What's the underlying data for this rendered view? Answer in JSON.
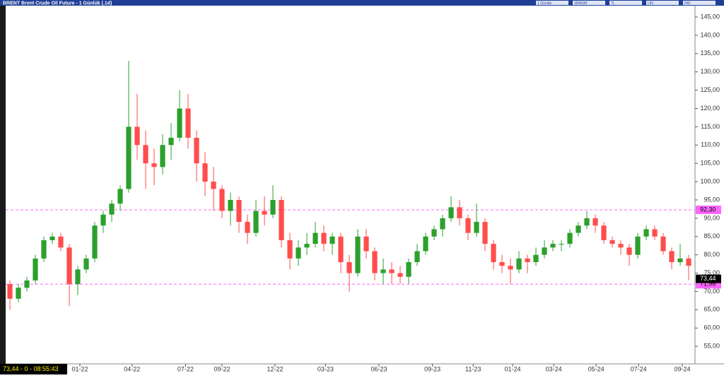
{
  "window_title": "BRENT Brent Crude Oil Future - 1 Günlük (.1d)",
  "toolbar": [
    "1 Günlük",
    "3DMUM",
    "TL",
    "LIN",
    "IND"
  ],
  "status": "73,44 - 0 - 08:55:43",
  "chart_data": {
    "type": "candlestick",
    "up_color": "#2ca02c",
    "down_color": "#ff4d4d",
    "candles": [
      [
        72,
        73,
        65,
        68
      ],
      [
        68,
        72,
        67,
        71
      ],
      [
        71,
        74,
        70,
        73
      ],
      [
        73,
        80,
        72,
        79
      ],
      [
        79,
        85,
        78,
        84
      ],
      [
        84,
        86,
        83,
        85
      ],
      [
        85,
        86,
        81,
        82
      ],
      [
        82,
        83,
        66,
        72
      ],
      [
        72,
        77,
        69,
        76
      ],
      [
        76,
        80,
        75,
        79
      ],
      [
        79,
        89,
        78,
        88
      ],
      [
        88,
        92,
        86,
        91
      ],
      [
        91,
        95,
        89,
        94
      ],
      [
        94,
        99,
        92,
        98
      ],
      [
        98,
        133,
        97,
        115
      ],
      [
        115,
        124,
        106,
        110
      ],
      [
        110,
        114,
        98,
        105
      ],
      [
        105,
        109,
        99,
        104
      ],
      [
        104,
        113,
        102,
        110
      ],
      [
        110,
        116,
        106,
        112
      ],
      [
        112,
        125,
        111,
        120
      ],
      [
        120,
        124,
        109,
        112
      ],
      [
        112,
        114,
        100,
        105
      ],
      [
        105,
        108,
        96,
        100
      ],
      [
        100,
        104,
        92,
        98
      ],
      [
        98,
        99,
        90,
        92
      ],
      [
        92,
        97,
        88,
        95
      ],
      [
        95,
        96,
        86,
        89
      ],
      [
        89,
        91,
        83,
        86
      ],
      [
        86,
        95,
        85,
        92
      ],
      [
        92,
        96,
        88,
        91
      ],
      [
        91,
        99,
        90,
        95
      ],
      [
        95,
        96,
        82,
        84
      ],
      [
        84,
        86,
        76,
        79
      ],
      [
        79,
        84,
        77,
        82
      ],
      [
        82,
        86,
        80,
        83
      ],
      [
        83,
        89,
        82,
        86
      ],
      [
        86,
        88,
        81,
        83
      ],
      [
        83,
        86,
        80,
        85
      ],
      [
        85,
        86,
        75,
        78
      ],
      [
        78,
        80,
        70,
        75
      ],
      [
        75,
        87,
        74,
        85
      ],
      [
        85,
        87,
        79,
        81
      ],
      [
        81,
        82,
        73,
        75
      ],
      [
        75,
        79,
        72,
        76
      ],
      [
        76,
        78,
        72,
        75
      ],
      [
        75,
        77,
        72,
        74
      ],
      [
        74,
        79,
        72,
        78
      ],
      [
        78,
        83,
        77,
        81
      ],
      [
        81,
        86,
        80,
        85
      ],
      [
        85,
        88,
        84,
        87
      ],
      [
        87,
        91,
        85,
        90
      ],
      [
        90,
        96,
        89,
        93
      ],
      [
        93,
        95,
        88,
        90
      ],
      [
        90,
        91,
        84,
        86
      ],
      [
        86,
        94,
        85,
        89
      ],
      [
        89,
        90,
        81,
        83
      ],
      [
        83,
        84,
        76,
        78
      ],
      [
        78,
        80,
        75,
        77
      ],
      [
        77,
        79,
        72,
        76
      ],
      [
        76,
        81,
        75,
        79
      ],
      [
        79,
        80,
        75,
        78
      ],
      [
        78,
        82,
        77,
        80
      ],
      [
        80,
        84,
        79,
        82
      ],
      [
        82,
        84,
        81,
        83
      ],
      [
        83,
        84,
        81,
        83
      ],
      [
        83,
        87,
        82,
        86
      ],
      [
        86,
        89,
        85,
        88
      ],
      [
        88,
        92,
        87,
        90
      ],
      [
        90,
        91,
        86,
        88
      ],
      [
        88,
        89,
        83,
        84
      ],
      [
        84,
        85,
        82,
        83
      ],
      [
        83,
        84,
        80,
        82
      ],
      [
        82,
        83,
        77,
        80
      ],
      [
        80,
        86,
        79,
        85
      ],
      [
        85,
        88,
        84,
        87
      ],
      [
        87,
        88,
        84,
        85
      ],
      [
        85,
        86,
        80,
        81
      ],
      [
        81,
        82,
        76,
        78
      ],
      [
        78,
        83,
        77,
        79
      ],
      [
        79,
        80,
        73,
        77
      ]
    ],
    "xlim": [
      0,
      81
    ],
    "xticks": [
      {
        "value": 8.75,
        "label": "01-22"
      },
      {
        "value": 14.9,
        "label": "04-22"
      },
      {
        "value": 21.2,
        "label": "07-22"
      },
      {
        "value": 25.5,
        "label": "09-22"
      },
      {
        "value": 31.75,
        "label": "12-22"
      },
      {
        "value": 37.7,
        "label": "03-23"
      },
      {
        "value": 44,
        "label": "06-23"
      },
      {
        "value": 50.3,
        "label": "09-23"
      },
      {
        "value": 55.1,
        "label": "11-23"
      },
      {
        "value": 59.75,
        "label": "01-24"
      },
      {
        "value": 64.6,
        "label": "03-24"
      },
      {
        "value": 69.6,
        "label": "05-24"
      },
      {
        "value": 74.6,
        "label": "07-24"
      },
      {
        "value": 79.75,
        "label": "09-24"
      }
    ],
    "ylim": [
      50.2,
      148.1
    ],
    "yticks": [
      {
        "value": 55,
        "label": "55,00"
      },
      {
        "value": 60,
        "label": "60,00"
      },
      {
        "value": 65,
        "label": "65,00"
      },
      {
        "value": 70,
        "label": "70,00"
      },
      {
        "value": 75,
        "label": "75,00"
      },
      {
        "value": 80,
        "label": "80,00"
      },
      {
        "value": 85,
        "label": "85,00"
      },
      {
        "value": 90,
        "label": "90,00"
      },
      {
        "value": 95,
        "label": "95,00"
      },
      {
        "value": 100,
        "label": "100,00"
      },
      {
        "value": 105,
        "label": "105,00"
      },
      {
        "value": 110,
        "label": "110,00"
      },
      {
        "value": 115,
        "label": "115,00"
      },
      {
        "value": 120,
        "label": "120,00"
      },
      {
        "value": 125,
        "label": "125,00"
      },
      {
        "value": 130,
        "label": "130,00"
      },
      {
        "value": 135,
        "label": "135,00"
      },
      {
        "value": 140,
        "label": "140,00"
      },
      {
        "value": 145,
        "label": "145,00"
      }
    ],
    "levels": [
      {
        "value": 92.3,
        "label": "92,30"
      },
      {
        "value": 71.96,
        "label": "71,96"
      }
    ],
    "level_color": "#ff66ff",
    "last_price": {
      "value": 73.44,
      "label": "73,44"
    }
  }
}
